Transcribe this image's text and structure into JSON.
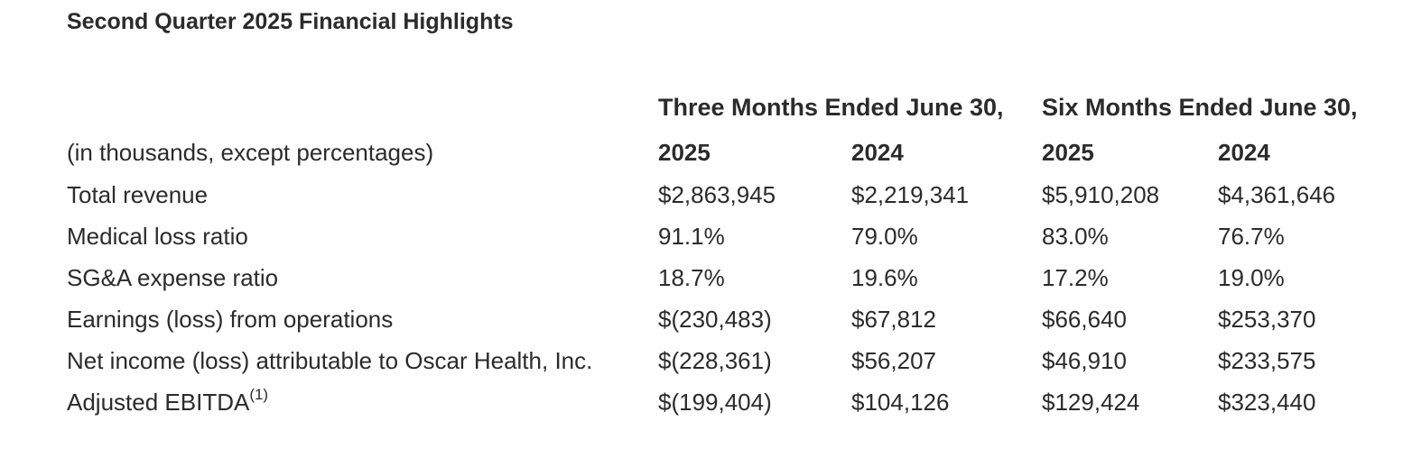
{
  "title": "Second Quarter 2025 Financial Highlights",
  "groups": {
    "three_months": "Three Months Ended June 30,",
    "six_months": "Six Months Ended June 30,"
  },
  "header_row": {
    "label": "(in thousands, except percentages)",
    "cols": [
      "2025",
      "2024",
      "2025",
      "2024"
    ]
  },
  "rows": [
    {
      "label": "Total revenue",
      "sup": "",
      "values": [
        "$2,863,945",
        "$2,219,341",
        "$5,910,208",
        "$4,361,646"
      ]
    },
    {
      "label": "Medical loss ratio",
      "sup": "",
      "values": [
        "91.1%",
        "79.0%",
        "83.0%",
        "76.7%"
      ]
    },
    {
      "label": "SG&A expense ratio",
      "sup": "",
      "values": [
        "18.7%",
        "19.6%",
        "17.2%",
        "19.0%"
      ]
    },
    {
      "label": "Earnings (loss) from operations",
      "sup": "",
      "values": [
        "$(230,483)",
        "$67,812",
        "$66,640",
        "$253,370"
      ]
    },
    {
      "label": "Net income (loss) attributable to Oscar Health, Inc.",
      "sup": "",
      "values": [
        "$(228,361)",
        "$56,207",
        "$46,910",
        "$233,575"
      ]
    },
    {
      "label": "Adjusted EBITDA",
      "sup": "(1)",
      "values": [
        "$(199,404)",
        "$104,126",
        "$129,424",
        "$323,440"
      ]
    }
  ]
}
